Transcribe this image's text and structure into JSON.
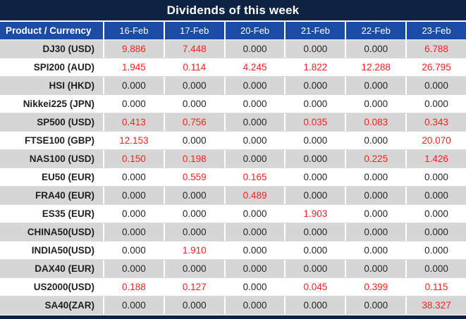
{
  "title": "Dividends of this week",
  "table": {
    "product_header": "Product / Currency",
    "date_headers": [
      "16-Feb",
      "17-Feb",
      "20-Feb",
      "21-Feb",
      "22-Feb",
      "23-Feb"
    ],
    "rows": [
      {
        "product": "DJ30 (USD)",
        "values": [
          "9.886",
          "7.448",
          "0.000",
          "0.000",
          "0.000",
          "6.788"
        ]
      },
      {
        "product": "SPI200 (AUD)",
        "values": [
          "1.945",
          "0.114",
          "4.245",
          "1.822",
          "12.288",
          "26.795"
        ]
      },
      {
        "product": "HSI (HKD)",
        "values": [
          "0.000",
          "0.000",
          "0.000",
          "0.000",
          "0.000",
          "0.000"
        ]
      },
      {
        "product": "Nikkei225 (JPN)",
        "values": [
          "0.000",
          "0.000",
          "0.000",
          "0.000",
          "0.000",
          "0.000"
        ]
      },
      {
        "product": "SP500 (USD)",
        "values": [
          "0.413",
          "0.756",
          "0.000",
          "0.035",
          "0.083",
          "0.343"
        ]
      },
      {
        "product": "FTSE100 (GBP)",
        "values": [
          "12.153",
          "0.000",
          "0.000",
          "0.000",
          "0.000",
          "20.070"
        ]
      },
      {
        "product": "NAS100 (USD)",
        "values": [
          "0.150",
          "0.198",
          "0.000",
          "0.000",
          "0.225",
          "1.426"
        ]
      },
      {
        "product": "EU50 (EUR)",
        "values": [
          "0.000",
          "0.559",
          "0.165",
          "0.000",
          "0.000",
          "0.000"
        ]
      },
      {
        "product": "FRA40 (EUR)",
        "values": [
          "0.000",
          "0.000",
          "0.489",
          "0.000",
          "0.000",
          "0.000"
        ]
      },
      {
        "product": "ES35 (EUR)",
        "values": [
          "0.000",
          "0.000",
          "0.000",
          "1.903",
          "0.000",
          "0.000"
        ]
      },
      {
        "product": "CHINA50(USD)",
        "values": [
          "0.000",
          "0.000",
          "0.000",
          "0.000",
          "0.000",
          "0.000"
        ]
      },
      {
        "product": "INDIA50(USD)",
        "values": [
          "0.000",
          "1.910",
          "0.000",
          "0.000",
          "0.000",
          "0.000"
        ]
      },
      {
        "product": "DAX40 (EUR)",
        "values": [
          "0.000",
          "0.000",
          "0.000",
          "0.000",
          "0.000",
          "0.000"
        ]
      },
      {
        "product": "US2000(USD)",
        "values": [
          "0.188",
          "0.127",
          "0.000",
          "0.045",
          "0.399",
          "0.115"
        ]
      },
      {
        "product": "SA40(ZAR)",
        "values": [
          "0.000",
          "0.000",
          "0.000",
          "0.000",
          "0.000",
          "38.327"
        ]
      }
    ]
  },
  "colors": {
    "title_bg": "#0d2342",
    "header_bg": "#1b4ca3",
    "row_alt": "#d6d6d6",
    "value_nonzero": "#ff1e1e",
    "value_zero": "#262626"
  }
}
